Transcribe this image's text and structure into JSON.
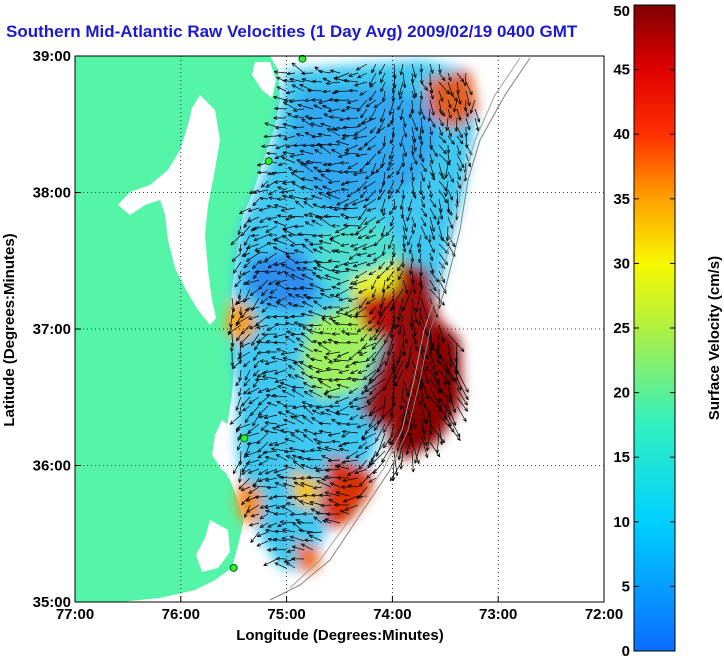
{
  "chart_data": {
    "type": "heatmap",
    "title": "Southern Mid-Atlantic Raw Velocities (1 Day Avg) 2009/02/19 0400 GMT",
    "xlabel": "Longitude (Degrees:Minutes)",
    "ylabel": "Latitude (Degrees:Minutes)",
    "x_ticks": [
      "77:00",
      "76:00",
      "75:00",
      "74:00",
      "73:00",
      "72:00"
    ],
    "y_ticks": [
      "39:00",
      "38:00",
      "37:00",
      "36:00",
      "35:00"
    ],
    "xlim": [
      -77,
      -72
    ],
    "ylim": [
      35,
      39
    ],
    "grid": true,
    "colorbar": {
      "label": "Surface Velocity (cm/s)",
      "range": [
        0,
        50
      ],
      "ticks": [
        "0",
        "5",
        "10",
        "15",
        "20",
        "25",
        "30",
        "35",
        "40",
        "45",
        "50"
      ],
      "colormap": "jet"
    },
    "land_color": "#55f5a8",
    "arrow_color": "#000000",
    "stations": [
      {
        "lon": -74.85,
        "lat": 38.98
      },
      {
        "lon": -75.17,
        "lat": 38.23
      },
      {
        "lon": -75.4,
        "lat": 36.2
      },
      {
        "lon": -75.5,
        "lat": 35.25
      }
    ]
  }
}
